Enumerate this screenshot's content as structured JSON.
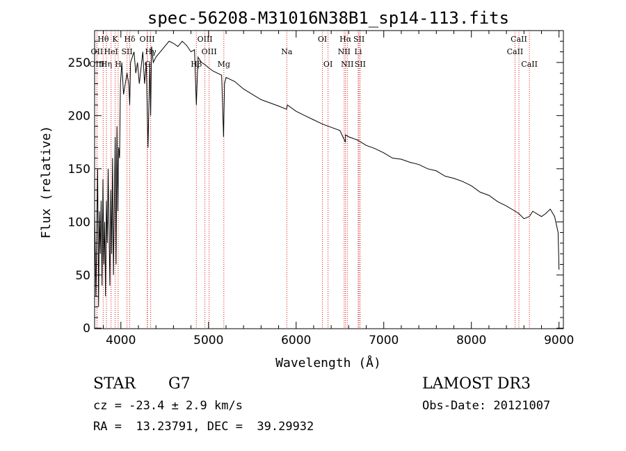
{
  "chart_data": {
    "type": "line",
    "title": "spec-56208-M31016N38B1_sp14-113.fits",
    "xlabel": "Wavelength (Å)",
    "ylabel": "Flux (relative)",
    "xlim": [
      3700,
      9050
    ],
    "ylim": [
      -5,
      2800
    ],
    "xticks": [
      4000,
      5000,
      6000,
      7000,
      8000,
      9000
    ],
    "yticks": [
      0,
      50,
      100,
      150,
      200,
      250
    ],
    "ytick_labels": [
      "0",
      "50",
      "100",
      "150",
      "200",
      "250"
    ],
    "ytick_scale": 10,
    "series": [
      {
        "name": "flux",
        "x": [
          3700,
          3715,
          3725,
          3735,
          3745,
          3755,
          3765,
          3775,
          3785,
          3795,
          3805,
          3815,
          3825,
          3835,
          3845,
          3855,
          3865,
          3875,
          3885,
          3895,
          3905,
          3915,
          3925,
          3935,
          3945,
          3955,
          3965,
          3975,
          3985,
          3995,
          4010,
          4030,
          4050,
          4070,
          4090,
          4101,
          4110,
          4130,
          4150,
          4170,
          4190,
          4210,
          4230,
          4250,
          4270,
          4290,
          4310,
          4330,
          4340,
          4350,
          4370,
          4400,
          4450,
          4500,
          4550,
          4600,
          4650,
          4700,
          4750,
          4800,
          4840,
          4861,
          4880,
          4920,
          4960,
          5000,
          5050,
          5100,
          5150,
          5172,
          5183,
          5200,
          5300,
          5400,
          5500,
          5600,
          5700,
          5800,
          5890,
          5900,
          6000,
          6100,
          6200,
          6300,
          6400,
          6500,
          6562,
          6563,
          6600,
          6700,
          6800,
          6900,
          7000,
          7100,
          7200,
          7300,
          7400,
          7500,
          7600,
          7700,
          7800,
          7900,
          8000,
          8100,
          8200,
          8300,
          8400,
          8500,
          8540,
          8600,
          8662,
          8700,
          8800,
          8850,
          8900,
          8950,
          8990,
          9000
        ],
        "values": [
          1100,
          300,
          900,
          1500,
          200,
          1100,
          700,
          1200,
          400,
          1400,
          600,
          1000,
          300,
          1200,
          800,
          1500,
          900,
          400,
          1300,
          700,
          1600,
          500,
          1100,
          1800,
          600,
          1900,
          1100,
          1700,
          1600,
          2300,
          2500,
          2200,
          2300,
          2400,
          2300,
          2100,
          2500,
          2550,
          2600,
          2400,
          2500,
          2300,
          2450,
          2600,
          2300,
          2500,
          1700,
          2500,
          2000,
          2650,
          2500,
          2550,
          2600,
          2650,
          2700,
          2680,
          2650,
          2700,
          2660,
          2600,
          2620,
          2100,
          2550,
          2500,
          2480,
          2450,
          2420,
          2400,
          2380,
          1800,
          2300,
          2360,
          2320,
          2250,
          2200,
          2150,
          2120,
          2090,
          2060,
          2100,
          2040,
          2000,
          1960,
          1920,
          1890,
          1860,
          1750,
          1820,
          1800,
          1770,
          1720,
          1690,
          1650,
          1600,
          1590,
          1560,
          1540,
          1500,
          1480,
          1430,
          1410,
          1380,
          1340,
          1280,
          1250,
          1190,
          1150,
          1100,
          1080,
          1030,
          1050,
          1100,
          1050,
          1080,
          1120,
          1050,
          900,
          550
        ]
      }
    ],
    "lines": [
      {
        "name": "Hθ",
        "x": 3798,
        "row": 0
      },
      {
        "name": "OII",
        "x": 3727,
        "row": 1
      },
      {
        "name": "OIII",
        "x": 3727,
        "row": 2
      },
      {
        "name": "Hη",
        "x": 3835,
        "row": 2
      },
      {
        "name": "HeI",
        "x": 3888,
        "row": 1
      },
      {
        "name": "K",
        "x": 3934,
        "row": 0
      },
      {
        "name": "H",
        "x": 3969,
        "row": 2
      },
      {
        "name": "SII",
        "x": 4070,
        "row": 1
      },
      {
        "name": "Hδ",
        "x": 4101,
        "row": 0
      },
      {
        "name": "OIII",
        "x": 4300,
        "row": 0
      },
      {
        "name": "Hγ",
        "x": 4340,
        "row": 1
      },
      {
        "name": "G",
        "x": 4304,
        "row": 2
      },
      {
        "name": "Hβ",
        "x": 4861,
        "row": 2
      },
      {
        "name": "OIII",
        "x": 4959,
        "row": 0
      },
      {
        "name": "OIII",
        "x": 5007,
        "row": 1
      },
      {
        "name": "Mg",
        "x": 5175,
        "row": 2
      },
      {
        "name": "Na",
        "x": 5894,
        "row": 1
      },
      {
        "name": "OI",
        "x": 6300,
        "row": 0
      },
      {
        "name": "OI",
        "x": 6364,
        "row": 2
      },
      {
        "name": "Hα",
        "x": 6563,
        "row": 0
      },
      {
        "name": "NII",
        "x": 6548,
        "row": 1
      },
      {
        "name": "NII",
        "x": 6584,
        "row": 2
      },
      {
        "name": "SII",
        "x": 6717,
        "row": 0
      },
      {
        "name": "Li",
        "x": 6708,
        "row": 1
      },
      {
        "name": "SII",
        "x": 6731,
        "row": 2
      },
      {
        "name": "CaII",
        "x": 8498,
        "row": 1
      },
      {
        "name": "CaII",
        "x": 8542,
        "row": 0
      },
      {
        "name": "CaII",
        "x": 8662,
        "row": 2
      }
    ]
  },
  "info": {
    "object_class": "STAR",
    "subclass": "G7",
    "survey": "LAMOST DR3",
    "redshift": "cz = -23.4 ± 2.9 km/s",
    "obs_date": "Obs-Date: 20121007",
    "coords": "RA =  13.23791, DEC =  39.29932"
  }
}
